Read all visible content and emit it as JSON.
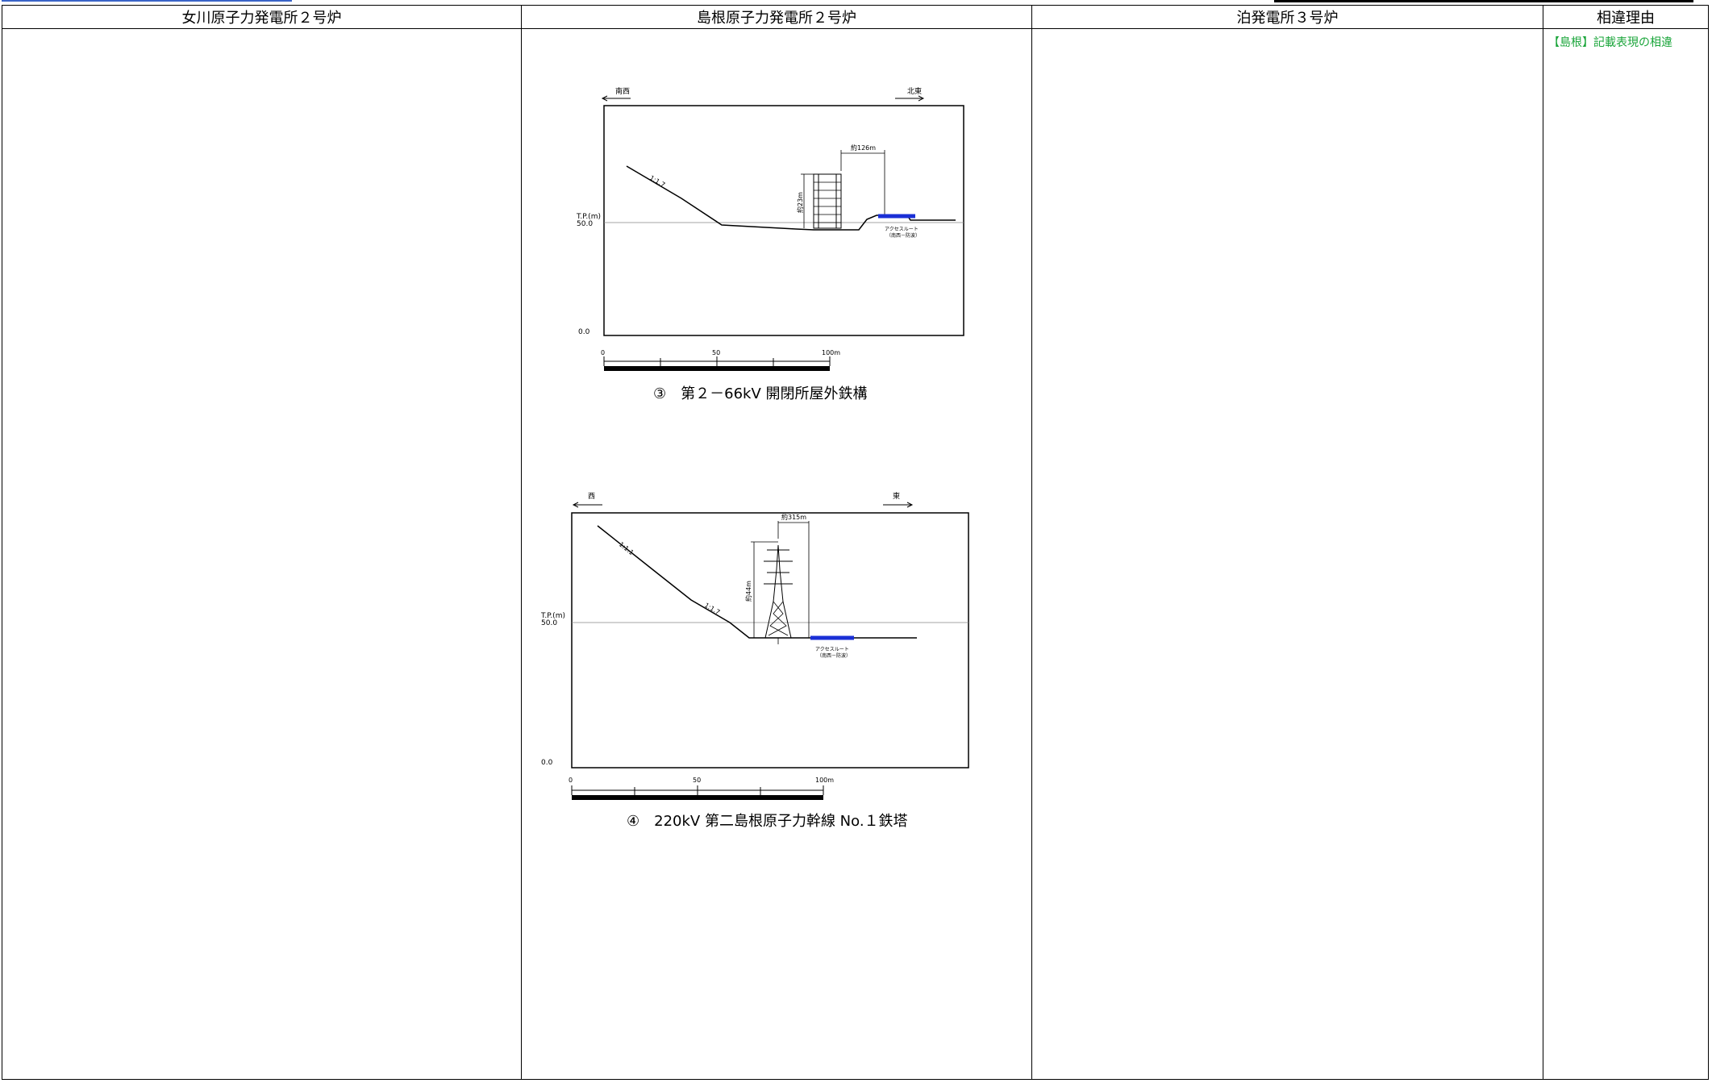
{
  "columns": {
    "onagawa": "女川原子力発電所２号炉",
    "shimane": "島根原子力発電所２号炉",
    "tomari": "泊発電所３号炉",
    "reason": "相違理由"
  },
  "reason_note": "【島根】記載表現の相違",
  "figure3": {
    "dir_left": "南西",
    "dir_right": "北東",
    "tp_label_1": "T.P.(m)",
    "tp_label_2": "50.0",
    "zero_label": "0.0",
    "slope_label": "1:1.7",
    "width_label": "約126m",
    "height_label": "約23m",
    "access_label_1": "アクセスルート",
    "access_label_2": "（南西－防波）",
    "scale_0": "0",
    "scale_50": "50",
    "scale_100": "100m",
    "caption": "③　第２－66kV 開閉所屋外鉄構"
  },
  "figure4": {
    "dir_left": "西",
    "dir_right": "東",
    "tp_label_1": "T.P.(m)",
    "tp_label_2": "50.0",
    "zero_label": "0.0",
    "slope_label_1": "1:1.1",
    "slope_label_2": "1:1.7",
    "width_label": "約315m",
    "height_label": "約44m",
    "access_label_1": "アクセスルート",
    "access_label_2": "（南西－防波）",
    "scale_0": "0",
    "scale_50": "50",
    "scale_100": "100m",
    "caption": "④　220kV 第二島根原子力幹線 No.１鉄塔"
  },
  "colors": {
    "access_route": "#1a2fd6",
    "note_green": "#1aa53a",
    "header_bar": "#3a64c8"
  }
}
